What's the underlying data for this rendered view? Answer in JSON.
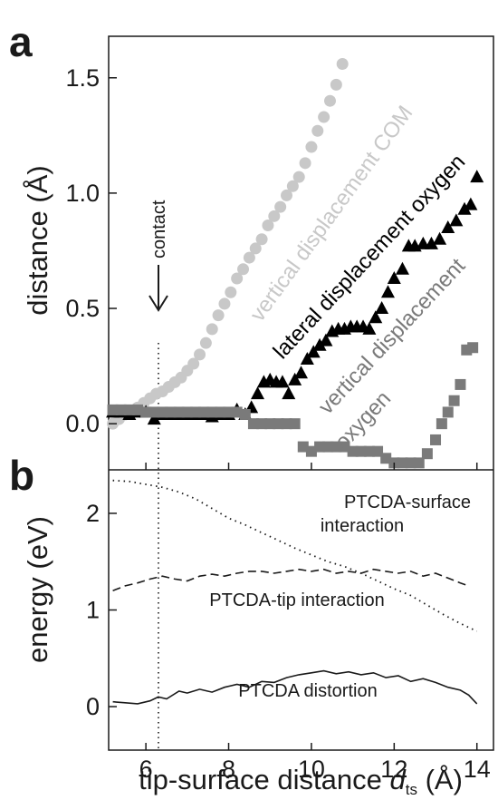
{
  "panel_labels": {
    "a": "a",
    "b": "b"
  },
  "axis_labels": {
    "ya": "distance (Å)",
    "yb": "energy (eV)",
    "x_main": "tip-surface distance ",
    "x_symbol": "d",
    "x_sub": "ts",
    "x_unit": " (Å)"
  },
  "annotations": {
    "contact": "contact",
    "vertical_com": "vertical displacement COM",
    "lateral_oxygen": "lateral displacement oxygen",
    "vertical_oxygen_1": "vertical displacement",
    "vertical_oxygen_2": "oxygen",
    "surface_1": "PTCDA-surface",
    "surface_2": "interaction",
    "tip": "PTCDA-tip interaction",
    "distortion": "PTCDA distortion"
  },
  "colors": {
    "com": "#c8c8c8",
    "lateral": "#000000",
    "vertical_oxygen": "#7a7a7a",
    "text_dark": "#1a1a1a"
  },
  "chart_data": [
    {
      "panel": "a",
      "type": "scatter",
      "xlim": [
        5.1,
        14.4
      ],
      "ylim": [
        -0.2,
        1.68
      ],
      "x_ticks": [
        6,
        8,
        10,
        12,
        14
      ],
      "y_ticks": [
        0.0,
        0.5,
        1.0,
        1.5
      ],
      "y_tick_labels": [
        "0.0",
        "0.5",
        "1.0",
        "1.5"
      ],
      "contact_x": 6.2,
      "series": [
        {
          "key": "com",
          "marker": "circle",
          "x": [
            5.2,
            5.35,
            5.5,
            5.65,
            5.8,
            5.95,
            6.1,
            6.25,
            6.4,
            6.55,
            6.7,
            6.85,
            7.0,
            7.15,
            7.3,
            7.45,
            7.6,
            7.75,
            7.9,
            8.05,
            8.2,
            8.35,
            8.5,
            8.65,
            8.8,
            8.95,
            9.1,
            9.25,
            9.4,
            9.55,
            9.7,
            9.85,
            10.0,
            10.15,
            10.3,
            10.45,
            10.6,
            10.75
          ],
          "y": [
            0.0,
            0.02,
            0.04,
            0.05,
            0.07,
            0.09,
            0.11,
            0.13,
            0.14,
            0.16,
            0.18,
            0.2,
            0.23,
            0.26,
            0.3,
            0.35,
            0.41,
            0.47,
            0.52,
            0.57,
            0.63,
            0.67,
            0.72,
            0.76,
            0.8,
            0.86,
            0.9,
            0.94,
            0.99,
            1.03,
            1.07,
            1.13,
            1.2,
            1.27,
            1.33,
            1.4,
            1.47,
            1.56
          ]
        },
        {
          "key": "lateral",
          "marker": "triangle",
          "x": [
            5.2,
            5.4,
            5.6,
            5.8,
            6.0,
            6.2,
            6.4,
            6.6,
            6.8,
            7.0,
            7.2,
            7.4,
            7.6,
            7.8,
            8.0,
            8.2,
            8.4,
            8.55,
            8.7,
            8.85,
            9.0,
            9.15,
            9.3,
            9.45,
            9.6,
            9.75,
            9.9,
            10.05,
            10.2,
            10.35,
            10.5,
            10.65,
            10.8,
            10.95,
            11.1,
            11.25,
            11.4,
            11.55,
            11.7,
            11.85,
            12.0,
            12.2,
            12.35,
            12.5,
            12.7,
            12.9,
            13.1,
            13.3,
            13.5,
            13.7,
            13.85,
            14.0
          ],
          "y": [
            0.05,
            0.05,
            0.04,
            0.05,
            0.05,
            0.02,
            0.04,
            0.04,
            0.04,
            0.04,
            0.04,
            0.04,
            0.03,
            0.04,
            0.04,
            0.06,
            0.04,
            0.07,
            0.13,
            0.18,
            0.19,
            0.18,
            0.18,
            0.13,
            0.19,
            0.22,
            0.28,
            0.31,
            0.34,
            0.36,
            0.4,
            0.41,
            0.41,
            0.42,
            0.42,
            0.42,
            0.41,
            0.46,
            0.5,
            0.57,
            0.63,
            0.67,
            0.77,
            0.77,
            0.78,
            0.78,
            0.8,
            0.85,
            0.88,
            0.93,
            0.95,
            1.07
          ]
        },
        {
          "key": "vertical_oxygen",
          "marker": "square",
          "x": [
            5.2,
            5.4,
            5.6,
            5.8,
            6.0,
            6.2,
            6.4,
            6.6,
            6.8,
            7.0,
            7.2,
            7.4,
            7.6,
            7.8,
            8.0,
            8.2,
            8.4,
            8.6,
            8.8,
            9.0,
            9.2,
            9.4,
            9.6,
            9.8,
            10.0,
            10.2,
            10.4,
            10.6,
            10.8,
            11.0,
            11.2,
            11.4,
            11.6,
            11.8,
            12.0,
            12.2,
            12.4,
            12.6,
            12.8,
            13.0,
            13.15,
            13.3,
            13.45,
            13.6,
            13.75,
            13.9
          ],
          "y": [
            0.06,
            0.06,
            0.06,
            0.06,
            0.05,
            0.05,
            0.05,
            0.05,
            0.05,
            0.05,
            0.05,
            0.05,
            0.05,
            0.05,
            0.05,
            0.05,
            0.04,
            0.0,
            0.0,
            0.0,
            0.0,
            0.0,
            0.0,
            -0.1,
            -0.12,
            -0.1,
            -0.1,
            -0.1,
            -0.1,
            -0.12,
            -0.12,
            -0.12,
            -0.12,
            -0.15,
            -0.17,
            -0.17,
            -0.17,
            -0.17,
            -0.13,
            -0.07,
            0.0,
            0.05,
            0.1,
            0.17,
            0.32,
            0.33
          ]
        }
      ]
    },
    {
      "panel": "b",
      "type": "line",
      "xlim": [
        5.1,
        14.4
      ],
      "ylim": [
        -0.45,
        2.45
      ],
      "x_ticks": [
        6,
        8,
        10,
        12,
        14
      ],
      "y_ticks": [
        0,
        1,
        2
      ],
      "y_tick_labels": [
        "0",
        "1",
        "2"
      ],
      "series": [
        {
          "key": "surface",
          "style": "dotted",
          "x": [
            5.2,
            5.6,
            6.0,
            6.4,
            6.8,
            7.2,
            7.6,
            8.0,
            8.4,
            8.8,
            9.2,
            9.6,
            10.0,
            10.4,
            10.8,
            11.2,
            11.6,
            12.0,
            12.4,
            12.8,
            13.2,
            13.6,
            14.0
          ],
          "y": [
            2.34,
            2.33,
            2.3,
            2.27,
            2.22,
            2.15,
            2.05,
            1.95,
            1.88,
            1.8,
            1.72,
            1.64,
            1.57,
            1.5,
            1.45,
            1.38,
            1.3,
            1.22,
            1.15,
            1.05,
            0.95,
            0.86,
            0.78
          ]
        },
        {
          "key": "tip",
          "style": "dashed",
          "x": [
            5.2,
            5.5,
            5.8,
            6.1,
            6.4,
            6.7,
            7.0,
            7.3,
            7.6,
            7.9,
            8.2,
            8.5,
            8.8,
            9.1,
            9.4,
            9.7,
            10.0,
            10.3,
            10.6,
            10.9,
            11.2,
            11.5,
            11.8,
            12.1,
            12.4,
            12.7,
            13.0,
            13.3,
            13.6,
            13.8
          ],
          "y": [
            1.2,
            1.25,
            1.28,
            1.32,
            1.35,
            1.32,
            1.3,
            1.35,
            1.37,
            1.35,
            1.38,
            1.4,
            1.4,
            1.38,
            1.4,
            1.42,
            1.4,
            1.42,
            1.38,
            1.4,
            1.38,
            1.42,
            1.4,
            1.38,
            1.4,
            1.35,
            1.38,
            1.33,
            1.28,
            1.25
          ]
        },
        {
          "key": "distortion",
          "style": "solid",
          "x": [
            5.2,
            5.5,
            5.8,
            6.1,
            6.3,
            6.5,
            6.8,
            7.0,
            7.3,
            7.6,
            7.9,
            8.2,
            8.5,
            8.8,
            9.1,
            9.4,
            9.7,
            10.0,
            10.3,
            10.6,
            10.9,
            11.2,
            11.5,
            11.8,
            12.1,
            12.4,
            12.7,
            13.0,
            13.3,
            13.6,
            13.8,
            14.0
          ],
          "y": [
            0.05,
            0.04,
            0.03,
            0.06,
            0.1,
            0.08,
            0.16,
            0.14,
            0.18,
            0.15,
            0.2,
            0.23,
            0.2,
            0.26,
            0.25,
            0.3,
            0.33,
            0.35,
            0.37,
            0.34,
            0.36,
            0.33,
            0.35,
            0.3,
            0.32,
            0.26,
            0.29,
            0.25,
            0.2,
            0.17,
            0.12,
            0.03
          ]
        }
      ]
    }
  ]
}
